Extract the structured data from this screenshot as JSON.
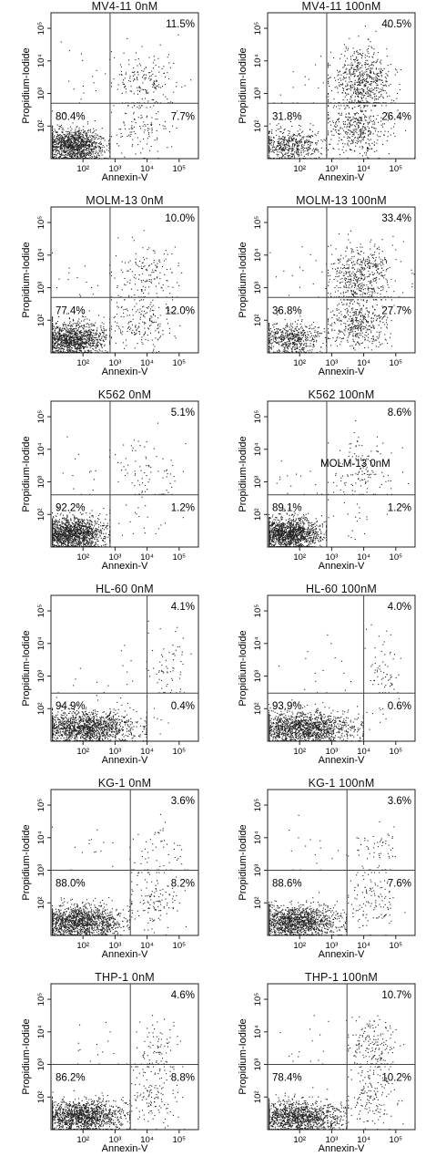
{
  "figure": {
    "x_axis_label": "Annexin-V",
    "y_axis_label": "Propidium-Iodide",
    "x_tick_labels": [
      "10²",
      "10³",
      "10⁴",
      "10⁵"
    ],
    "y_tick_labels": [
      "10²",
      "10³",
      "10⁴",
      "10⁵"
    ],
    "grid": false,
    "point_color": "#222222",
    "frame_color": "#222222",
    "gate_line_color": "#444444"
  },
  "chart_data": [
    {
      "type": "scatter",
      "title": "MV4-11 0nM",
      "xlabel": "Annexin-V",
      "ylabel": "Propidium-Iodide",
      "scale": "log",
      "xlim": [
        10,
        400000
      ],
      "ylim": [
        10,
        300000
      ],
      "gate_x": 700,
      "gate_y": 500,
      "quadrants": {
        "upper_right": "11.5%",
        "lower_left": "80.4%",
        "lower_right": "7.7%"
      }
    },
    {
      "type": "scatter",
      "title": "MV4-11 100nM",
      "xlabel": "Annexin-V",
      "ylabel": "Propidium-Iodide",
      "scale": "log",
      "xlim": [
        10,
        400000
      ],
      "ylim": [
        10,
        300000
      ],
      "gate_x": 700,
      "gate_y": 500,
      "quadrants": {
        "upper_right": "40.5%",
        "lower_left": "31.8%",
        "lower_right": "26.4%"
      }
    },
    {
      "type": "scatter",
      "title": "MOLM-13 0nM",
      "xlabel": "Annexin-V",
      "ylabel": "Propidium-Iodide",
      "scale": "log",
      "xlim": [
        10,
        400000
      ],
      "ylim": [
        10,
        300000
      ],
      "gate_x": 700,
      "gate_y": 500,
      "quadrants": {
        "upper_right": "10.0%",
        "lower_left": "77.4%",
        "lower_right": "12.0%"
      }
    },
    {
      "type": "scatter",
      "title": "MOLM-13 100nM",
      "xlabel": "Annexin-V",
      "ylabel": "Propidium-Iodide",
      "scale": "log",
      "xlim": [
        10,
        400000
      ],
      "ylim": [
        10,
        300000
      ],
      "gate_x": 700,
      "gate_y": 500,
      "quadrants": {
        "upper_right": "33.4%",
        "lower_left": "36.8%",
        "lower_right": "27.7%"
      }
    },
    {
      "type": "scatter",
      "title": "K562 0nM",
      "xlabel": "Annexin-V",
      "ylabel": "Propidium-Iodide",
      "scale": "log",
      "xlim": [
        10,
        400000
      ],
      "ylim": [
        10,
        300000
      ],
      "gate_x": 700,
      "gate_y": 400,
      "quadrants": {
        "upper_right": "5.1%",
        "lower_left": "92.2%",
        "lower_right": "1.2%"
      }
    },
    {
      "type": "scatter",
      "title": "K562 100nM",
      "xlabel": "Annexin-V",
      "ylabel": "Propidium-Iodide",
      "scale": "log",
      "xlim": [
        10,
        400000
      ],
      "ylim": [
        10,
        300000
      ],
      "gate_x": 700,
      "gate_y": 400,
      "quadrants": {
        "upper_right": "8.6%",
        "lower_left": "89.1%",
        "lower_right": "1.2%"
      },
      "annotation": "MOLM-13 0nM"
    },
    {
      "type": "scatter",
      "title": "HL-60 0nM",
      "xlabel": "Annexin-V",
      "ylabel": "Propidium-Iodide",
      "scale": "log",
      "xlim": [
        10,
        400000
      ],
      "ylim": [
        10,
        300000
      ],
      "gate_x": 10000,
      "gate_y": 300,
      "quadrants": {
        "upper_right": "4.1%",
        "lower_left": "94.9%",
        "lower_right": "0.4%"
      }
    },
    {
      "type": "scatter",
      "title": "HL-60 100nM",
      "xlabel": "Annexin-V",
      "ylabel": "Propidium-Iodide",
      "scale": "log",
      "xlim": [
        10,
        400000
      ],
      "ylim": [
        10,
        300000
      ],
      "gate_x": 10000,
      "gate_y": 300,
      "quadrants": {
        "upper_right": "4.0%",
        "lower_left": "93.9%",
        "lower_right": "0.6%"
      }
    },
    {
      "type": "scatter",
      "title": "KG-1 0nM",
      "xlabel": "Annexin-V",
      "ylabel": "Propidium-Iodide",
      "scale": "log",
      "xlim": [
        10,
        400000
      ],
      "ylim": [
        10,
        300000
      ],
      "gate_x": 3000,
      "gate_y": 1000,
      "quadrants": {
        "upper_right": "3.6%",
        "lower_left": "88.0%",
        "lower_right": "8.2%"
      }
    },
    {
      "type": "scatter",
      "title": "KG-1 100nM",
      "xlabel": "Annexin-V",
      "ylabel": "Propidium-Iodide",
      "scale": "log",
      "xlim": [
        10,
        400000
      ],
      "ylim": [
        10,
        300000
      ],
      "gate_x": 3000,
      "gate_y": 1000,
      "quadrants": {
        "upper_right": "3.6%",
        "lower_left": "88.6%",
        "lower_right": "7.6%"
      }
    },
    {
      "type": "scatter",
      "title": "THP-1 0nM",
      "xlabel": "Annexin-V",
      "ylabel": "Propidium-Iodide",
      "scale": "log",
      "xlim": [
        10,
        400000
      ],
      "ylim": [
        10,
        300000
      ],
      "gate_x": 3000,
      "gate_y": 1000,
      "quadrants": {
        "upper_right": "4.6%",
        "lower_left": "86.2%",
        "lower_right": "8.8%"
      }
    },
    {
      "type": "scatter",
      "title": "THP-1 100nM",
      "xlabel": "Annexin-V",
      "ylabel": "Propidium-Iodide",
      "scale": "log",
      "xlim": [
        10,
        400000
      ],
      "ylim": [
        10,
        300000
      ],
      "gate_x": 3000,
      "gate_y": 1000,
      "quadrants": {
        "upper_right": "10.7%",
        "lower_left": "78.4%",
        "lower_right": "10.2%"
      }
    }
  ]
}
